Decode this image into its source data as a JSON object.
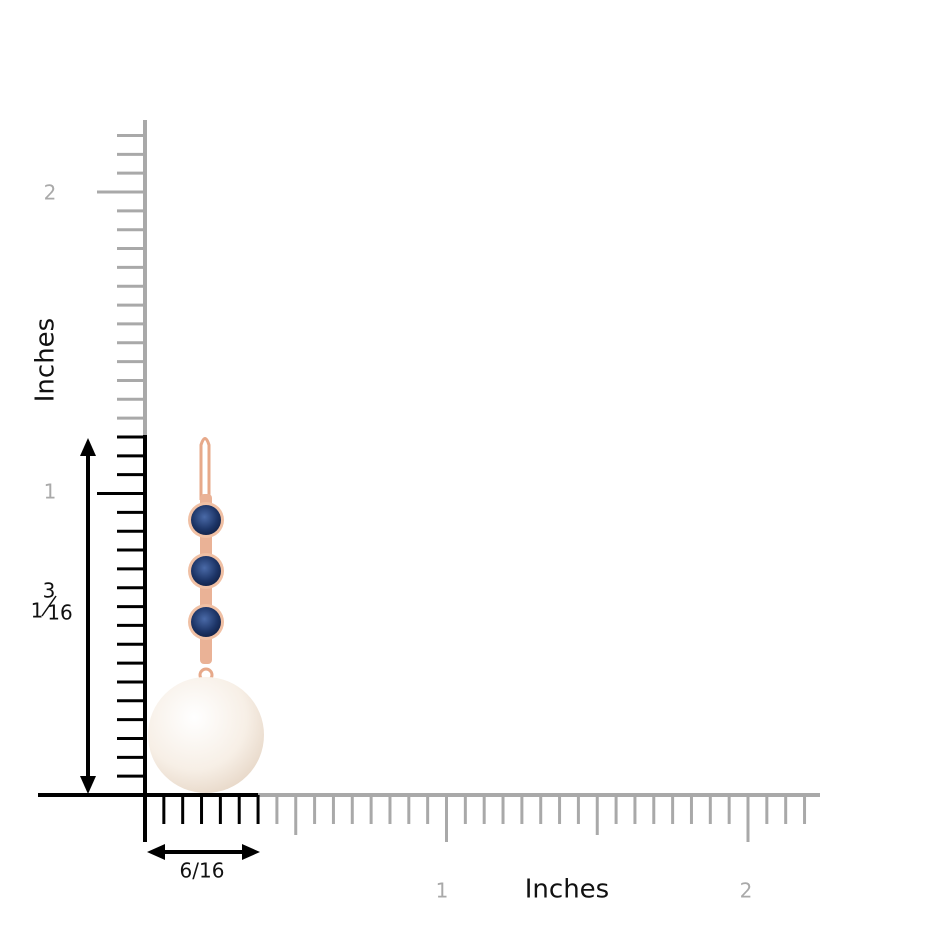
{
  "vertical_ruler": {
    "label": "Inches",
    "ticks": [
      "1",
      "2"
    ]
  },
  "horizontal_ruler": {
    "label": "Inches",
    "ticks": [
      "1",
      "2"
    ]
  },
  "height": {
    "whole": "1",
    "numerator": "3",
    "denominator": "16"
  },
  "width": "6/16"
}
